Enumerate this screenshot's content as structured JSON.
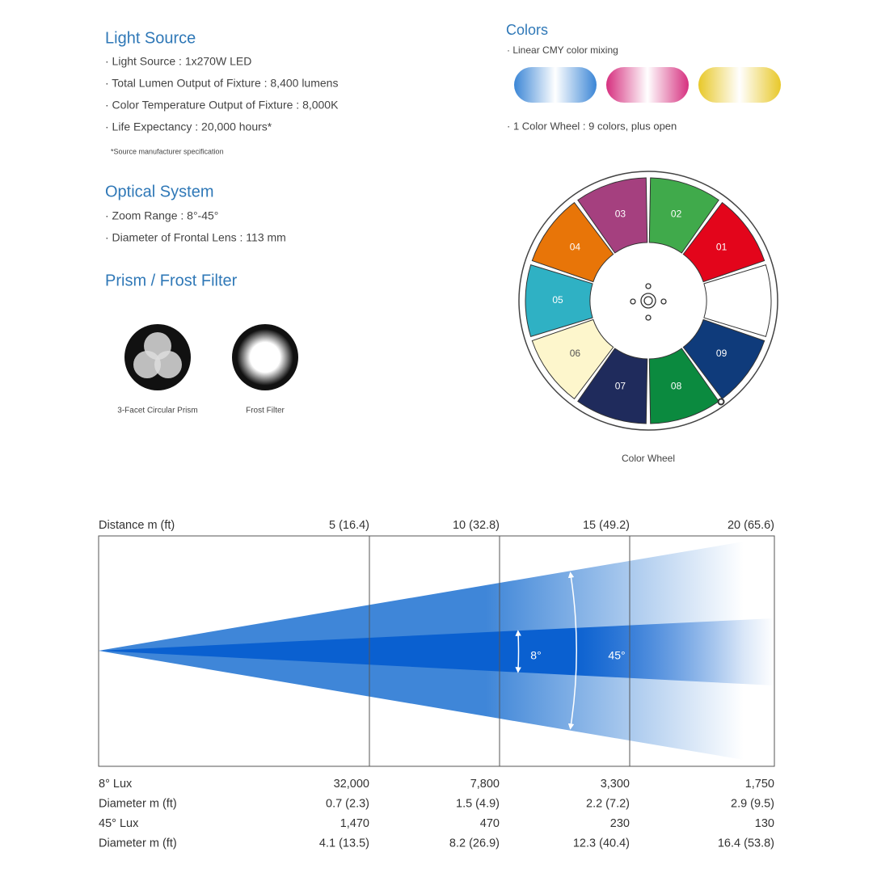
{
  "light_source": {
    "title": "Light Source",
    "items": [
      "· Light Source : 1x270W LED",
      "· Total Lumen Output of Fixture : 8,400 lumens",
      "· Color Temperature Output of Fixture : 8,000K",
      "· Life Expectancy : 20,000 hours*"
    ],
    "note": "*Source manufacturer specification"
  },
  "optical_system": {
    "title": "Optical System",
    "items": [
      "· Zoom Range : 8°-45°",
      "· Diameter of Frontal Lens : 113 mm"
    ]
  },
  "prism_frost": {
    "title": "Prism / Frost Filter",
    "items": [
      "3-Facet Circular Prism",
      "Frost Filter"
    ]
  },
  "colors": {
    "title": "Colors",
    "cmy": "· Linear CMY color mixing",
    "wheel": "· 1 Color Wheel : 9 colors, plus open",
    "slots": [
      "01",
      "02",
      "03",
      "04",
      "05",
      "06",
      "07",
      "08",
      "09"
    ],
    "caption": "Color Wheel"
  },
  "beam": {
    "distance_label": "Distance m (ft)",
    "distances": [
      "5 (16.4)",
      "10 (32.8)",
      "15 (49.2)",
      "20 (65.6)"
    ],
    "angles": [
      "8°",
      "45°"
    ],
    "rows": [
      {
        "label": "8° Lux",
        "values": [
          "32,000",
          "7,800",
          "3,300",
          "1,750"
        ]
      },
      {
        "label": "Diameter m (ft)",
        "values": [
          "0.7 (2.3)",
          "1.5 (4.9)",
          "2.2 (7.2)",
          "2.9 (9.5)"
        ]
      },
      {
        "label": "45° Lux",
        "values": [
          "1,470",
          "470",
          "230",
          "130"
        ]
      },
      {
        "label": "Diameter m (ft)",
        "values": [
          "4.1 (13.5)",
          "8.2 (26.9)",
          "12.3 (40.4)",
          "16.4 (53.8)"
        ]
      }
    ]
  }
}
